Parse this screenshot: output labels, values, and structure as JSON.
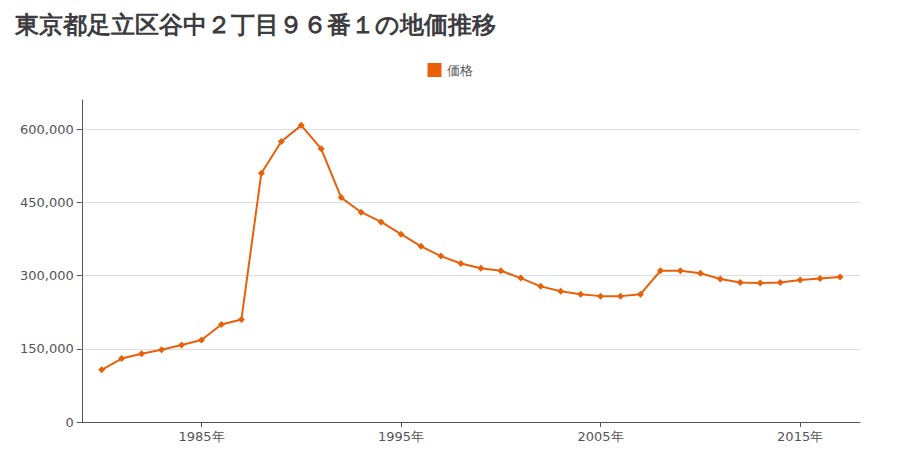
{
  "chart_data": {
    "type": "line",
    "title": "東京都足立区谷中２丁目９６番１の地価推移",
    "x": [
      1980,
      1981,
      1982,
      1983,
      1984,
      1985,
      1986,
      1987,
      1988,
      1989,
      1990,
      1991,
      1992,
      1993,
      1994,
      1995,
      1996,
      1997,
      1998,
      1999,
      2000,
      2001,
      2002,
      2003,
      2004,
      2005,
      2006,
      2007,
      2008,
      2009,
      2010,
      2011,
      2012,
      2013,
      2014,
      2015,
      2016,
      2017
    ],
    "series": [
      {
        "name": "価格",
        "color": "#e8610a",
        "marker": "diamond",
        "values": [
          107000,
          130000,
          140000,
          148000,
          158000,
          168000,
          200000,
          210000,
          510000,
          575000,
          608000,
          560000,
          460000,
          430000,
          410000,
          385000,
          360000,
          340000,
          325000,
          315000,
          310000,
          295000,
          278000,
          268000,
          262000,
          258000,
          258000,
          262000,
          310000,
          310000,
          305000,
          293000,
          286000,
          285000,
          286000,
          291000,
          294000,
          297000
        ]
      }
    ],
    "xlim": [
      1979,
      2018
    ],
    "xticks": [
      {
        "value": 1985,
        "label": "1985年"
      },
      {
        "value": 1995,
        "label": "1995年"
      },
      {
        "value": 2005,
        "label": "2005年"
      },
      {
        "value": 2015,
        "label": "2015年"
      }
    ],
    "ylim": [
      0,
      660000
    ],
    "yticks": [
      0,
      {
        "value": 150000,
        "label": "150,000"
      },
      {
        "value": 300000,
        "label": "300,000"
      },
      {
        "value": 450000,
        "label": "450,000"
      },
      {
        "value": 600000,
        "label": "600,000"
      }
    ],
    "grid": "y",
    "legend": "top"
  }
}
